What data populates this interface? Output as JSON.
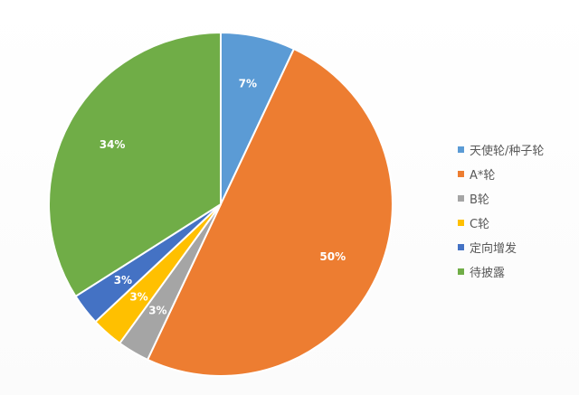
{
  "chart_data": {
    "type": "pie",
    "title": "",
    "start_angle_deg": 0,
    "direction": "clockwise",
    "legend_position": "right",
    "categories": [
      "天使轮/种子轮",
      "A*轮",
      "B轮",
      "C轮",
      "定向增发",
      "待披露"
    ],
    "values": [
      7,
      50,
      3,
      3,
      3,
      34
    ],
    "labels": [
      "7%",
      "50%",
      "3%",
      "3%",
      "3%",
      "34%"
    ],
    "colors": [
      "#5B9BD5",
      "#ED7D31",
      "#A5A5A5",
      "#FFC000",
      "#4472C4",
      "#70AD47"
    ]
  }
}
